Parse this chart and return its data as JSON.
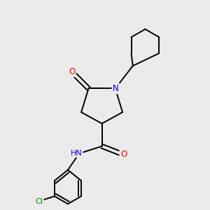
{
  "background_color": "#ebebeb",
  "bond_color": "#000000",
  "atom_colors": {
    "N": "#0000cc",
    "O": "#ff0000",
    "Cl": "#008000",
    "H": "#888888",
    "C": "#000000"
  },
  "figsize": [
    3.0,
    3.0
  ],
  "dpi": 100
}
